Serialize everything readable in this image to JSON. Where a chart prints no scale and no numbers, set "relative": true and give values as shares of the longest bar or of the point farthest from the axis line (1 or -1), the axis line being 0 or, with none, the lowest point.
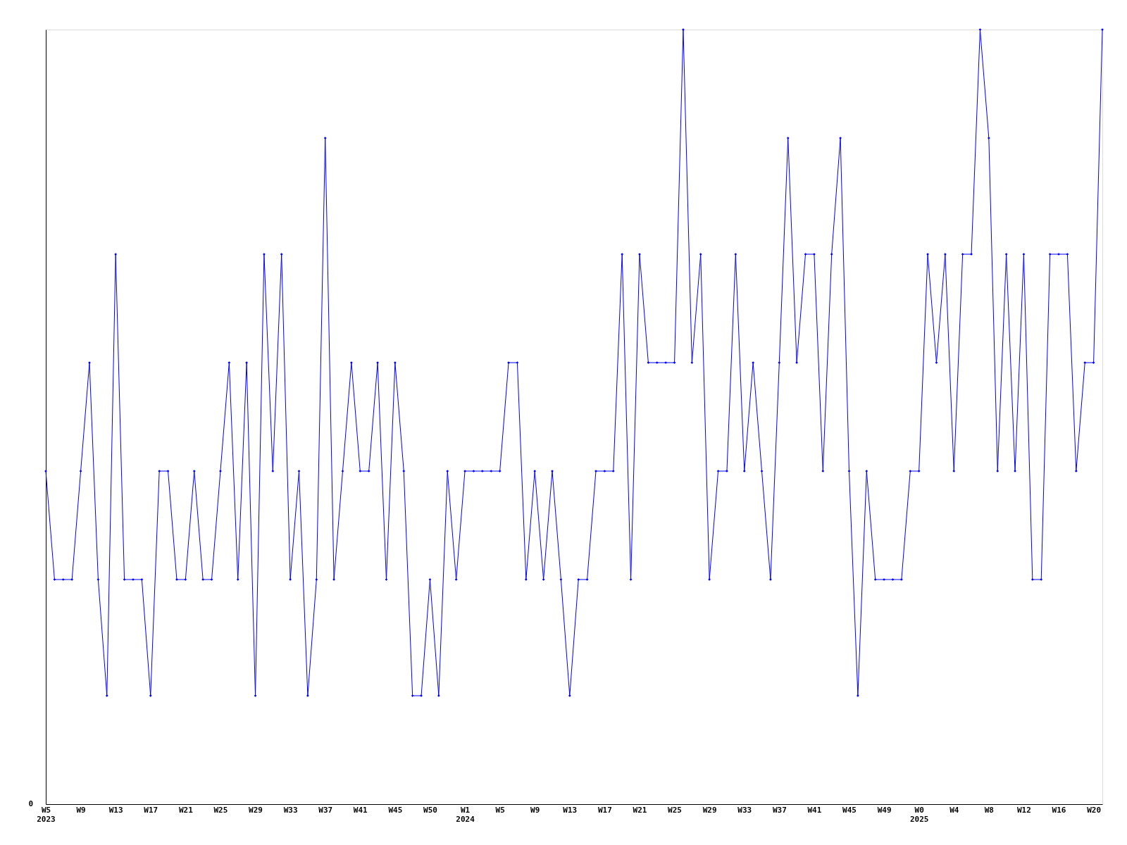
{
  "chart_data": {
    "type": "line",
    "relative": true,
    "color": "#0000ff",
    "marker": "diamond",
    "grid": false,
    "annotations": [
      "0"
    ],
    "categories": [
      "W5\n2023",
      null,
      null,
      null,
      "W9",
      null,
      null,
      null,
      "W13",
      null,
      null,
      null,
      "W17",
      null,
      null,
      null,
      "W21",
      null,
      null,
      null,
      "W25",
      null,
      null,
      null,
      "W29",
      null,
      null,
      null,
      "W33",
      null,
      null,
      null,
      "W37",
      null,
      null,
      null,
      "W41",
      null,
      null,
      null,
      "W45",
      null,
      null,
      null,
      "W50",
      null,
      null,
      null,
      "W1\n2024",
      null,
      null,
      null,
      "W5",
      null,
      null,
      null,
      "W9",
      null,
      null,
      null,
      "W13",
      null,
      null,
      null,
      "W17",
      null,
      null,
      null,
      "W21",
      null,
      null,
      null,
      "W25",
      null,
      null,
      null,
      "W29",
      null,
      null,
      null,
      "W33",
      null,
      null,
      null,
      "W37",
      null,
      null,
      null,
      "W41",
      null,
      null,
      null,
      "W45",
      null,
      null,
      null,
      "W49",
      null,
      null,
      null,
      "W0\n2025",
      null,
      null,
      null,
      "W4",
      null,
      null,
      null,
      "W8",
      null,
      null,
      null,
      "W12",
      null,
      null,
      null,
      "W16",
      null,
      null,
      null,
      "W20",
      null
    ],
    "values": [
      0.43,
      0.29,
      0.29,
      0.29,
      0.43,
      0.57,
      0.29,
      0.14,
      0.71,
      0.29,
      0.29,
      0.29,
      0.14,
      0.43,
      0.43,
      0.29,
      0.29,
      0.43,
      0.29,
      0.29,
      0.43,
      0.57,
      0.29,
      0.57,
      0.14,
      0.71,
      0.43,
      0.71,
      0.29,
      0.43,
      0.14,
      0.29,
      0.86,
      0.29,
      0.43,
      0.57,
      0.43,
      0.43,
      0.57,
      0.29,
      0.57,
      0.43,
      0.14,
      0.14,
      0.29,
      0.14,
      0.43,
      0.29,
      0.43,
      0.43,
      0.43,
      0.43,
      0.43,
      0.57,
      0.57,
      0.29,
      0.43,
      0.29,
      0.43,
      0.29,
      0.14,
      0.29,
      0.29,
      0.43,
      0.43,
      0.43,
      0.71,
      0.29,
      0.71,
      0.57,
      0.57,
      0.57,
      0.57,
      1,
      0.57,
      0.71,
      0.29,
      0.43,
      0.43,
      0.71,
      0.43,
      0.57,
      0.43,
      0.29,
      0.57,
      0.86,
      0.57,
      0.71,
      0.71,
      0.43,
      0.71,
      0.86,
      0.43,
      0.14,
      0.43,
      0.29,
      0.29,
      0.29,
      0.29,
      0.43,
      0.43,
      0.71,
      0.57,
      0.71,
      0.43,
      0.71,
      0.71,
      1,
      0.86,
      0.43,
      0.71,
      0.43,
      0.71,
      0.29,
      0.29,
      0.71,
      0.71,
      0.71,
      0.43,
      0.57,
      0.57,
      1
    ]
  }
}
